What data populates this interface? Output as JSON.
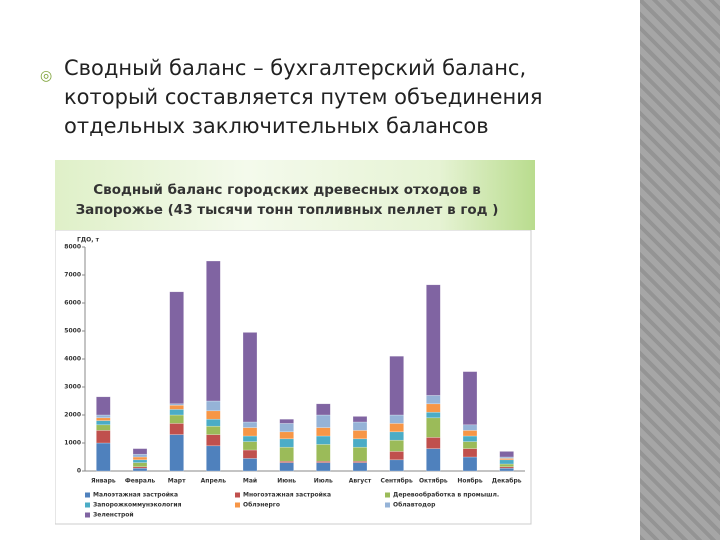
{
  "slide": {
    "bullet": "Сводный баланс – бухгалтерский баланс, который составляется путем объединения отдельных заключительных балансов"
  },
  "chart_data": {
    "type": "stacked-bar",
    "title": "Сводный баланс городских древесных отходов в Запорожье (43 тысячи тонн топливных пеллет  в год )",
    "y_label": "ГДО, т",
    "categories": [
      "Январь",
      "Февраль",
      "Март",
      "Апрель",
      "Май",
      "Июнь",
      "Июль",
      "Август",
      "Сентябрь",
      "Октябрь",
      "Ноябрь",
      "Декабрь"
    ],
    "ylim": [
      0,
      8000
    ],
    "yticks": [
      0,
      1000,
      2000,
      3000,
      4000,
      5000,
      6000,
      7000,
      8000
    ],
    "grid": false,
    "series": [
      {
        "name": "Малоэтажная застройка",
        "color": "#4f81bd",
        "values": [
          1000,
          100,
          1300,
          900,
          450,
          300,
          300,
          300,
          400,
          800,
          500,
          100
        ]
      },
      {
        "name": "Многоэтажная застройка",
        "color": "#c0504d",
        "values": [
          450,
          50,
          400,
          400,
          300,
          50,
          50,
          50,
          300,
          400,
          300,
          50
        ]
      },
      {
        "name": "Деревообработка в промышл.",
        "color": "#9bbb59",
        "values": [
          200,
          150,
          300,
          300,
          300,
          500,
          600,
          500,
          400,
          700,
          250,
          100
        ]
      },
      {
        "name": "Запорожкоммунэкология",
        "color": "#4bacc6",
        "values": [
          150,
          100,
          200,
          250,
          200,
          300,
          300,
          300,
          300,
          200,
          200,
          150
        ]
      },
      {
        "name": "Облэнерго",
        "color": "#f79646",
        "values": [
          100,
          100,
          150,
          300,
          300,
          250,
          300,
          300,
          300,
          300,
          200,
          50
        ]
      },
      {
        "name": "Облавтодор",
        "color": "#95b3d7",
        "values": [
          100,
          100,
          50,
          350,
          200,
          300,
          450,
          300,
          300,
          300,
          200,
          50
        ]
      },
      {
        "name": "Зеленстрой",
        "color": "#8064a2",
        "values": [
          650,
          200,
          4000,
          5000,
          3200,
          150,
          400,
          200,
          2100,
          3950,
          1900,
          200
        ]
      }
    ]
  }
}
